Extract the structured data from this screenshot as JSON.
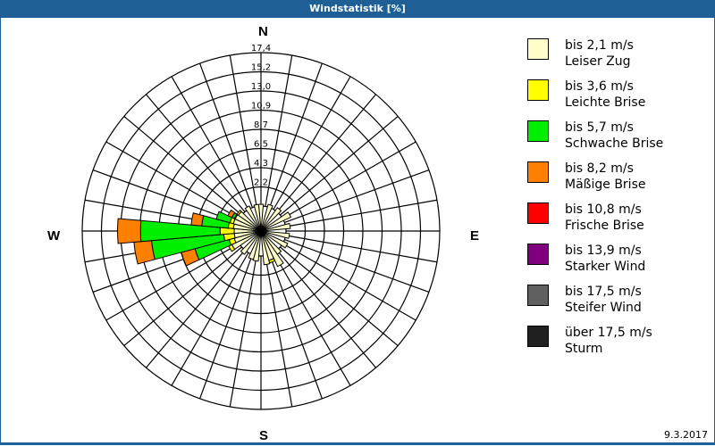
{
  "window": {
    "title": "Windstatistik [%]"
  },
  "compass": {
    "n": "N",
    "e": "E",
    "s": "S",
    "w": "W"
  },
  "footer": {
    "date": "9.3.2017"
  },
  "legend": [
    {
      "range": "bis 2,1 m/s",
      "name": "Leiser Zug",
      "color": "#ffffcc"
    },
    {
      "range": "bis 3,6 m/s",
      "name": "Leichte Brise",
      "color": "#ffff00"
    },
    {
      "range": "bis 5,7 m/s",
      "name": "Schwache Brise",
      "color": "#00ee00"
    },
    {
      "range": "bis 8,2 m/s",
      "name": "Mäßige Brise",
      "color": "#ff8000"
    },
    {
      "range": "bis 10,8 m/s",
      "name": "Frische Brise",
      "color": "#ff0000"
    },
    {
      "range": "bis 13,9 m/s",
      "name": "Starker Wind",
      "color": "#800080"
    },
    {
      "range": "bis 17,5 m/s",
      "name": "Steifer Wind",
      "color": "#606060"
    },
    {
      "range": "über 17,5 m/s",
      "name": "Sturm",
      "color": "#202020"
    }
  ],
  "chart_data": {
    "type": "polar-bar",
    "title": "Windstatistik [%]",
    "radial_unit": "%",
    "radial_ticks": [
      "2,2",
      "4,3",
      "6,5",
      "8,7",
      "10,9",
      "13,0",
      "15,2",
      "17,4"
    ],
    "radial_max": 17.4,
    "sector_width_deg": 10,
    "directions_deg_note": "0 = North, clockwise",
    "series_names": [
      "Leiser Zug",
      "Leichte Brise",
      "Schwache Brise",
      "Mäßige Brise",
      "Frische Brise",
      "Starker Wind",
      "Steifer Wind",
      "Sturm"
    ],
    "petals": [
      {
        "dir": 0,
        "segments": [
          0.2
        ]
      },
      {
        "dir": 20,
        "segments": [
          0.3
        ]
      },
      {
        "dir": 40,
        "segments": [
          0.4
        ]
      },
      {
        "dir": 60,
        "segments": [
          0.9
        ]
      },
      {
        "dir": 80,
        "segments": [
          0.5
        ]
      },
      {
        "dir": 100,
        "segments": [
          0.4
        ]
      },
      {
        "dir": 120,
        "segments": [
          0.5
        ]
      },
      {
        "dir": 140,
        "segments": [
          0.4
        ]
      },
      {
        "dir": 150,
        "segments": [
          1.6
        ]
      },
      {
        "dir": 160,
        "segments": [
          0.6,
          0.3
        ]
      },
      {
        "dir": 170,
        "segments": [
          1.0
        ]
      },
      {
        "dir": 190,
        "segments": [
          0.6
        ]
      },
      {
        "dir": 200,
        "segments": [
          0.5
        ]
      },
      {
        "dir": 220,
        "segments": [
          0.4
        ]
      },
      {
        "dir": 240,
        "segments": [
          0.8,
          0.4
        ]
      },
      {
        "dir": 250,
        "segments": [
          0.3,
          0.6,
          4.0,
          1.6
        ]
      },
      {
        "dir": 260,
        "segments": [
          0.2,
          1.2,
          8.2,
          2.0
        ]
      },
      {
        "dir": 270,
        "segments": [
          0.2,
          1.6,
          9.0,
          2.6
        ]
      },
      {
        "dir": 280,
        "segments": [
          0.3,
          0.6,
          3.0,
          1.2
        ]
      },
      {
        "dir": 290,
        "segments": [
          0.4,
          0.4,
          1.6
        ]
      },
      {
        "dir": 300,
        "segments": [
          0.4,
          0.1,
          0.3,
          0.5
        ]
      },
      {
        "dir": 310,
        "segments": [
          0.3,
          0.2
        ]
      },
      {
        "dir": 330,
        "segments": [
          0.3
        ]
      },
      {
        "dir": 350,
        "segments": [
          0.2
        ]
      }
    ]
  }
}
